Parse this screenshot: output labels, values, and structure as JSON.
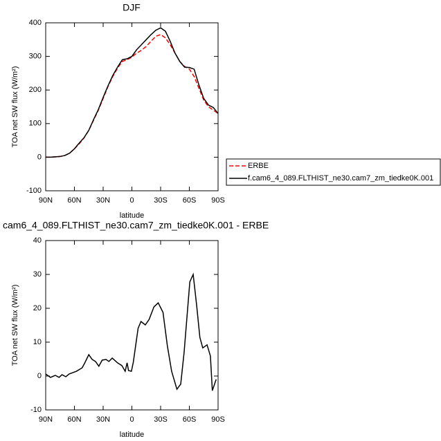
{
  "chart_data": [
    {
      "type": "line",
      "title": "DJF",
      "xlabel": "latitude",
      "ylabel": "TOA net SW flux (W/m²)",
      "x": [
        90,
        85,
        80,
        75,
        70,
        65,
        60,
        55,
        50,
        45,
        40,
        35,
        30,
        25,
        20,
        15,
        10,
        5,
        0,
        -5,
        -10,
        -15,
        -20,
        -25,
        -30,
        -35,
        -40,
        -45,
        -50,
        -55,
        -60,
        -65,
        -70,
        -75,
        -80,
        -85,
        -90
      ],
      "series": [
        {
          "name": "ERBE",
          "color": "#ff0000",
          "line_style": "dashed",
          "values": [
            0,
            0,
            1,
            2,
            5,
            12,
            25,
            40,
            57,
            80,
            110,
            140,
            175,
            210,
            240,
            265,
            285,
            290,
            298,
            310,
            318,
            330,
            345,
            360,
            365,
            355,
            335,
            310,
            285,
            270,
            262,
            240,
            205,
            170,
            150,
            140,
            130
          ]
        },
        {
          "name": "f.cam6_4_089.FLTHIST_ne30.cam7_zm_tiedke0K.001",
          "color": "#000000",
          "line_style": "solid",
          "values": [
            0,
            0,
            1,
            2,
            5,
            12,
            25,
            42,
            58,
            80,
            112,
            142,
            178,
            212,
            243,
            268,
            290,
            293,
            300,
            320,
            335,
            350,
            365,
            378,
            385,
            375,
            345,
            310,
            285,
            268,
            267,
            262,
            215,
            175,
            155,
            148,
            130
          ]
        }
      ],
      "xlim": [
        90,
        -90
      ],
      "xticks": [
        {
          "value": 90,
          "label": "90N"
        },
        {
          "value": 60,
          "label": "60N"
        },
        {
          "value": 30,
          "label": "30N"
        },
        0,
        {
          "value": -30,
          "label": "30S"
        },
        {
          "value": -60,
          "label": "60S"
        },
        {
          "value": -90,
          "label": "90S"
        }
      ],
      "ylim": [
        -100,
        400
      ],
      "yticks": [
        -100,
        0,
        100,
        200,
        300,
        400
      ],
      "legend": "right"
    },
    {
      "type": "line",
      "title": "cam6_4_089.FLTHIST_ne30.cam7_zm_tiedke0K.001 - ERBE",
      "xlabel": "latitude",
      "ylabel": "TOA net SW flux (W/m²)",
      "x": [
        90,
        85,
        80,
        76,
        73,
        69,
        65.5,
        58,
        52,
        49.5,
        45,
        41.5,
        38,
        34.5,
        31,
        27,
        24,
        20.5,
        15,
        10.5,
        7,
        5,
        3.5,
        0.5,
        -1.5,
        -6.5,
        -9.5,
        -14,
        -18,
        -23,
        -27.5,
        -32.5,
        -37,
        -41.5,
        -47,
        -51,
        -54.5,
        -60.5,
        -64,
        -67.5,
        -71,
        -74,
        -78.5,
        -82,
        -84,
        -88
      ],
      "values": [
        0.6,
        -0.4,
        0.2,
        -0.4,
        0.4,
        -0.2,
        0.6,
        1.4,
        2.4,
        3.7,
        6.3,
        4.9,
        4.3,
        2.9,
        4.7,
        4.9,
        4.3,
        5.3,
        3.9,
        3.1,
        1.4,
        3.9,
        1.6,
        1.4,
        4.1,
        14.1,
        16.1,
        15.1,
        16.7,
        20.4,
        21.6,
        18.8,
        9.0,
        1.4,
        -3.9,
        -2.4,
        6.9,
        27.8,
        30.0,
        21.2,
        11.4,
        8.3,
        9.2,
        5.9,
        -4.3,
        -1.0
      ],
      "color": "#000000",
      "xlim": [
        90,
        -90
      ],
      "xticks": [
        {
          "value": 90,
          "label": "90N"
        },
        {
          "value": 60,
          "label": "60N"
        },
        {
          "value": 30,
          "label": "30N"
        },
        0,
        {
          "value": -30,
          "label": "30S"
        },
        {
          "value": -60,
          "label": "60S"
        },
        {
          "value": -90,
          "label": "90S"
        }
      ],
      "ylim": [
        -10,
        40
      ],
      "yticks": [
        -10,
        0,
        10,
        20,
        30,
        40
      ]
    }
  ]
}
